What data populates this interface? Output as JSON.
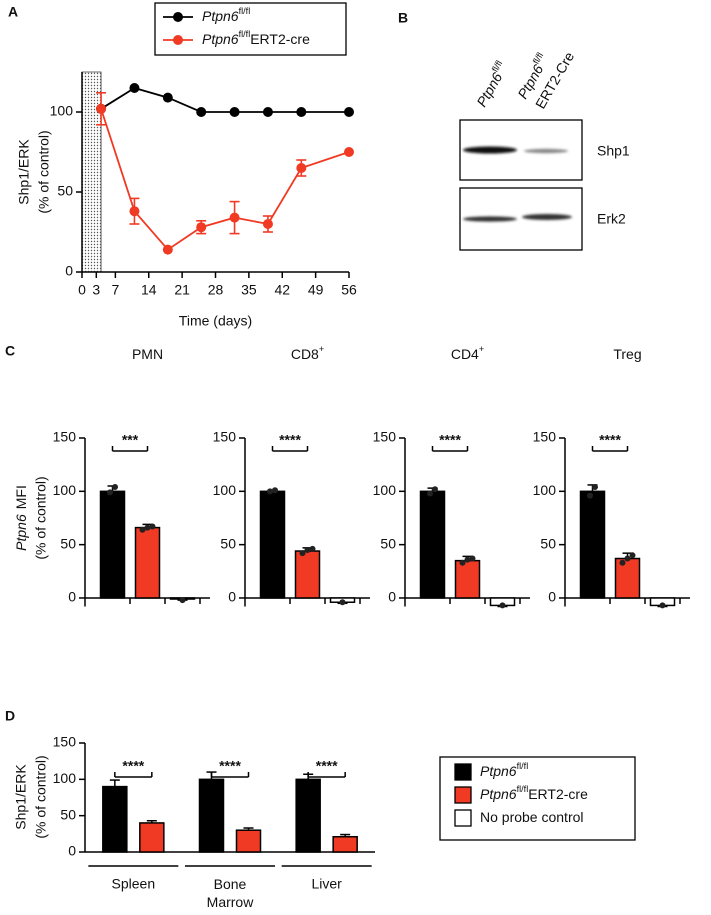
{
  "chart_data": [
    {
      "type": "line",
      "panel_label": "A",
      "xlabel": "Time (days)",
      "ylabel": [
        "Shp1/ERK",
        "(% of control)"
      ],
      "xlim": [
        0,
        56
      ],
      "xticks": [
        0,
        3,
        7,
        14,
        21,
        28,
        35,
        42,
        49,
        56
      ],
      "ylim": [
        0,
        125
      ],
      "yticks": [
        0,
        50,
        100
      ],
      "shaded_x": [
        0,
        4
      ],
      "x": [
        4,
        11,
        18,
        25,
        32,
        39,
        46,
        56
      ],
      "series": [
        {
          "name": {
            "gene": "Ptpn6",
            "sup": "fl/fl"
          },
          "color": "#000000",
          "values": [
            102,
            115,
            109,
            100,
            100,
            100,
            100,
            100
          ]
        },
        {
          "name": {
            "gene": "Ptpn6",
            "sup": "fl/fl",
            "rest": "ERT2-cre"
          },
          "color": "#f03a24",
          "values": [
            102,
            38,
            14,
            28,
            34,
            30,
            65,
            75
          ],
          "errors": [
            10,
            8,
            null,
            4,
            10,
            5,
            5,
            null
          ]
        }
      ]
    },
    {
      "type": "bar",
      "panel_label": "C",
      "title": {
        "text": "PMN"
      },
      "ylabel": {
        "gene": "Ptpn6",
        "rest": "MFI",
        "line2": "(% of control)"
      },
      "ylim": [
        -8,
        150
      ],
      "yticks": [
        0,
        50,
        100,
        150
      ],
      "significance": "***",
      "series": [
        {
          "color": "#000000",
          "values": [
            100
          ],
          "errors": [
            5
          ],
          "points": [
            [
              99,
              104
            ]
          ]
        },
        {
          "color": "#f03a24",
          "values": [
            66
          ],
          "errors": [
            3
          ],
          "points": [
            [
              64,
              66,
              67
            ]
          ]
        },
        {
          "color": "#ffffff",
          "values": [
            -1
          ],
          "errors": [
            1
          ],
          "points": [
            [
              -2
            ]
          ]
        }
      ]
    },
    {
      "type": "bar",
      "title": {
        "text": "CD8",
        "sup": "+"
      },
      "ylim": [
        -8,
        150
      ],
      "yticks": [
        0,
        50,
        100,
        150
      ],
      "significance": "****",
      "series": [
        {
          "color": "#000000",
          "values": [
            100
          ],
          "errors": [
            1
          ],
          "points": [
            [
              100,
              101
            ]
          ]
        },
        {
          "color": "#f03a24",
          "values": [
            44
          ],
          "errors": [
            3
          ],
          "points": [
            [
              42,
              45,
              46
            ]
          ]
        },
        {
          "color": "#ffffff",
          "values": [
            -4
          ],
          "errors": [
            1
          ],
          "points": [
            [
              -4
            ]
          ]
        }
      ]
    },
    {
      "type": "bar",
      "title": {
        "text": "CD4",
        "sup": "+"
      },
      "ylim": [
        -8,
        150
      ],
      "yticks": [
        0,
        50,
        100,
        150
      ],
      "significance": "****",
      "series": [
        {
          "color": "#000000",
          "values": [
            100
          ],
          "errors": [
            3
          ],
          "points": [
            [
              98,
              102
            ]
          ]
        },
        {
          "color": "#f03a24",
          "values": [
            35
          ],
          "errors": [
            4
          ],
          "points": [
            [
              33,
              36,
              37
            ]
          ]
        },
        {
          "color": "#ffffff",
          "values": [
            -7
          ],
          "errors": [
            1
          ],
          "points": [
            [
              -7
            ]
          ]
        }
      ]
    },
    {
      "type": "bar",
      "title": {
        "text": "Treg"
      },
      "ylim": [
        -8,
        150
      ],
      "yticks": [
        0,
        50,
        100,
        150
      ],
      "significance": "****",
      "series": [
        {
          "color": "#000000",
          "values": [
            100
          ],
          "errors": [
            6
          ],
          "points": [
            [
              96,
              104
            ]
          ]
        },
        {
          "color": "#f03a24",
          "values": [
            37
          ],
          "errors": [
            5
          ],
          "points": [
            [
              33,
              37,
              40
            ]
          ]
        },
        {
          "color": "#ffffff",
          "values": [
            -7
          ],
          "errors": [
            1
          ],
          "points": [
            [
              -7
            ]
          ]
        }
      ]
    },
    {
      "type": "bar",
      "panel_label": "D",
      "ylabel": [
        "Shp1/ERK",
        "(% of control)"
      ],
      "categories": [
        "Spleen",
        "Bone Marrow",
        "Liver"
      ],
      "ylim": [
        0,
        150
      ],
      "yticks": [
        0,
        50,
        100,
        150
      ],
      "significance": [
        "****",
        "****",
        "****"
      ],
      "legend": "right",
      "series": [
        {
          "name": {
            "gene": "Ptpn6",
            "sup": "fl/fl"
          },
          "color": "#000000",
          "values": [
            90,
            100,
            100
          ],
          "errors": [
            9,
            10,
            7
          ]
        },
        {
          "name": {
            "gene": "Ptpn6",
            "sup": "fl/fl",
            "rest": "ERT2-cre"
          },
          "color": "#f03a24",
          "values": [
            40,
            30,
            21
          ],
          "errors": [
            3,
            3,
            3
          ]
        },
        {
          "name": {
            "text": "No probe control"
          },
          "color": "#ffffff",
          "values": [
            null,
            null,
            null
          ]
        }
      ]
    }
  ],
  "blot": {
    "panel_label": "B",
    "lanes": [
      {
        "gene": "Ptpn6",
        "sup": "fl/fl"
      },
      {
        "gene": "Ptpn6",
        "sup": "fl/fl",
        "rest": "ERT2-Cre"
      }
    ],
    "bands": [
      "Shp1",
      "Erk2"
    ]
  }
}
